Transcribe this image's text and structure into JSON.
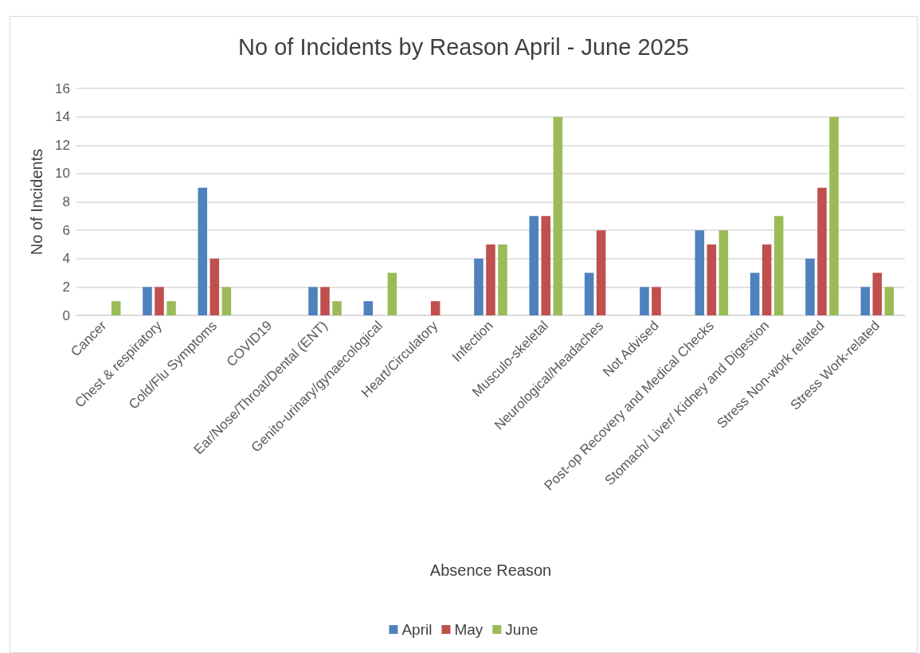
{
  "chart_data": {
    "type": "bar",
    "title": "No of Incidents by Reason April - June 2025",
    "xlabel": "Absence Reason",
    "ylabel": "No of Incidents",
    "categories": [
      "Cancer",
      "Chest & respiratory",
      "Cold/Flu Symptoms",
      "COVID19",
      "Ear/Nose/Throat/Dental (ENT)",
      "Genito-urinary/gynaecological",
      "Heart/Circulatory",
      "Infection",
      "Musculo-skeletal",
      "Neurological/Headaches",
      "Not Advised",
      "Post-op Recovery and Medical Checks",
      "Stomach/ Liver/ Kidney and Digestion",
      "Stress Non-work related",
      "Stress Work-related"
    ],
    "series": [
      {
        "name": "April",
        "color": "#4f81bd",
        "values": [
          0,
          2,
          9,
          0,
          2,
          1,
          0,
          4,
          7,
          3,
          2,
          6,
          3,
          4,
          2
        ]
      },
      {
        "name": "May",
        "color": "#c0504d",
        "values": [
          0,
          2,
          4,
          0,
          2,
          0,
          1,
          5,
          7,
          6,
          2,
          5,
          5,
          9,
          3
        ]
      },
      {
        "name": "June",
        "color": "#9bbb59",
        "values": [
          1,
          1,
          2,
          0,
          1,
          3,
          0,
          5,
          14,
          0,
          0,
          6,
          7,
          14,
          2
        ]
      }
    ],
    "ylim": [
      0,
      16
    ],
    "yticks": [
      0,
      2,
      4,
      6,
      8,
      10,
      12,
      14,
      16
    ],
    "grid": "y",
    "legend": "bottom"
  }
}
